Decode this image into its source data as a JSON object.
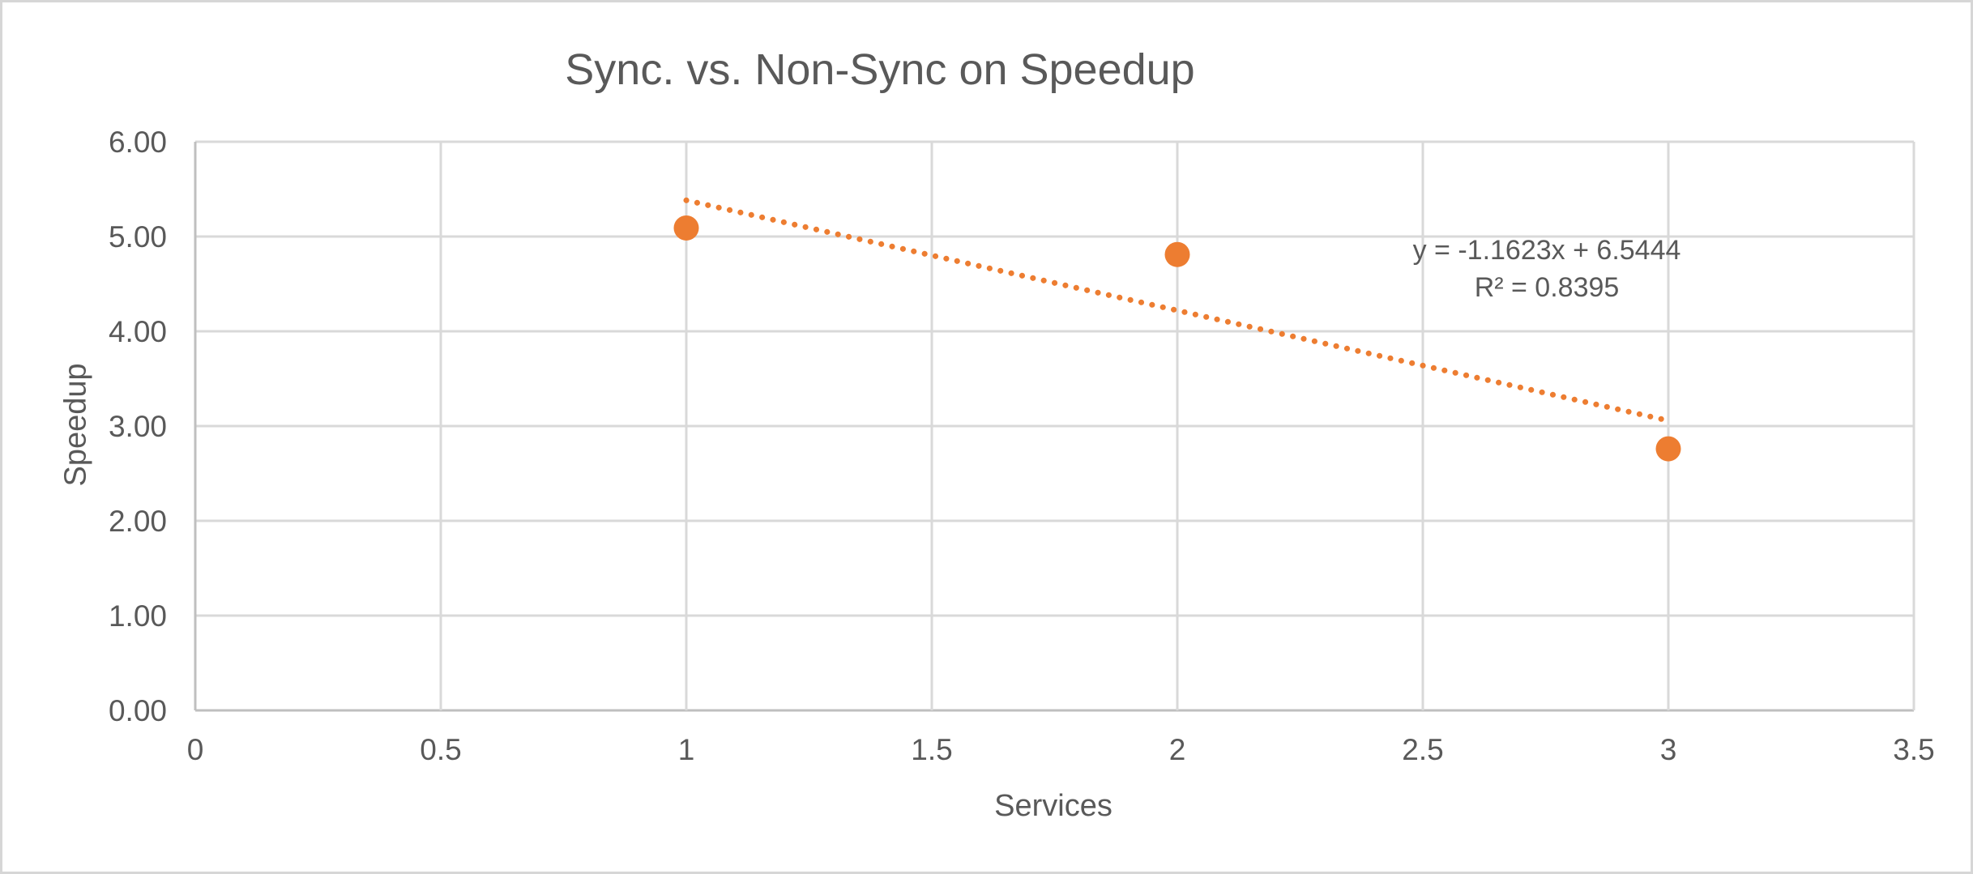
{
  "chart_data": {
    "type": "scatter",
    "title": "Sync. vs. Non-Sync on Speedup",
    "xlabel": "Services",
    "ylabel": "Speedup",
    "series": [
      {
        "name": "Speedup",
        "points": [
          {
            "x": 1,
            "y": 5.09
          },
          {
            "x": 2,
            "y": 4.81
          },
          {
            "x": 3,
            "y": 2.76
          }
        ]
      }
    ],
    "xlim": [
      0,
      3.5
    ],
    "ylim": [
      0,
      6
    ],
    "x_tick_values": [
      0,
      0.5,
      1,
      1.5,
      2,
      2.5,
      3,
      3.5
    ],
    "x_tick_labels": [
      "0",
      "0.5",
      "1",
      "1.5",
      "2",
      "2.5",
      "3",
      "3.5"
    ],
    "y_tick_values": [
      0,
      1,
      2,
      3,
      4,
      5,
      6
    ],
    "y_tick_labels": [
      "0.00",
      "1.00",
      "2.00",
      "3.00",
      "4.00",
      "5.00",
      "6.00"
    ],
    "grid": true,
    "legend": "none",
    "trendline": {
      "type": "linear",
      "slope": -1.1623,
      "intercept": 6.5444,
      "x_range": [
        1,
        3
      ],
      "style": "dotted",
      "equation_label": "y = -1.1623x + 6.5444",
      "r2_label": "R² = 0.8395"
    }
  },
  "colors": {
    "marker_orange": "#ED7D31",
    "trendline_orange": "#ED7D31",
    "text_gray": "#595959",
    "gridline_gray": "#D9D9D9",
    "axis_line_gray": "#BFBFBF",
    "frame_border_gray": "#D6D6D6",
    "background": "#FFFFFF"
  }
}
